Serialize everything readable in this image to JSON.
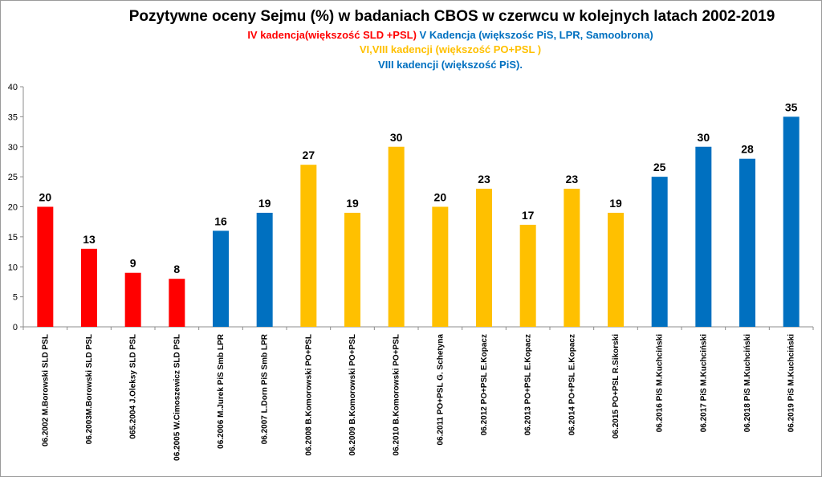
{
  "chart_data": {
    "type": "bar",
    "title": "Pozytywne oceny Sejmu (%) w badaniach CBOS w czerwcu w  kolejnych latach  2002-2019",
    "subtitle_lines": [
      [
        {
          "text": "IV kadencja(większość SLD +PSL)",
          "color": "#ff0000"
        },
        {
          "text": "  V Kadencja  (większośc PiS, LPR, Samoobrona)",
          "color": "#0070c0"
        }
      ],
      [
        {
          "text": "VI,VIII  kadencji (większość PO+PSL  )",
          "color": "#ffc000"
        }
      ],
      [
        {
          "text": "VIII kadencji (większość PiS).",
          "color": "#0070c0"
        }
      ]
    ],
    "categories": [
      "06.2002 M.Borowski SLD PSL",
      "06.2003M.Borowski SLD PSL",
      "065.2004 J.Oleksy SLD PSL",
      "06.2005 W.Cimoszewicz SLD PSL",
      "06.2006 M.Jurek PiS Smb LPR",
      "06.2007 L.Dorn PiS Smb LPR",
      "06.2008 B.Komorowski PO+PSL",
      "06.2009 B.Komorowski PO+PSL",
      "06.2010 B.Komorowski  PO+PSL",
      "06.2011 PO+PSL G. Schetyna",
      "06.2012 PO+PSL E.Kopacz",
      "06.2013 PO+PSL E.Kopacz",
      "06.2014 PO+PSL E.Kopacz",
      "06.2015 PO+PSL R.Sikorski",
      "06.2016 PiS  M.Kuchciński",
      "06.2017 PiS M.Kuchciński",
      "06.2018 PiS M.Kuchciński",
      "06.2019 PiS M.Kuchciński"
    ],
    "values": [
      20,
      13,
      9,
      8,
      16,
      19,
      27,
      19,
      30,
      20,
      23,
      17,
      23,
      19,
      25,
      30,
      28,
      35
    ],
    "bar_colors": [
      "#ff0000",
      "#ff0000",
      "#ff0000",
      "#ff0000",
      "#0070c0",
      "#0070c0",
      "#ffc000",
      "#ffc000",
      "#ffc000",
      "#ffc000",
      "#ffc000",
      "#ffc000",
      "#ffc000",
      "#ffc000",
      "#0070c0",
      "#0070c0",
      "#0070c0",
      "#0070c0"
    ],
    "ylim": [
      0,
      40
    ],
    "yticks": [
      0,
      5,
      10,
      15,
      20,
      25,
      30,
      35,
      40
    ],
    "xlabel": "",
    "ylabel": "",
    "grid": false,
    "legend": "none",
    "data_labels": true
  }
}
